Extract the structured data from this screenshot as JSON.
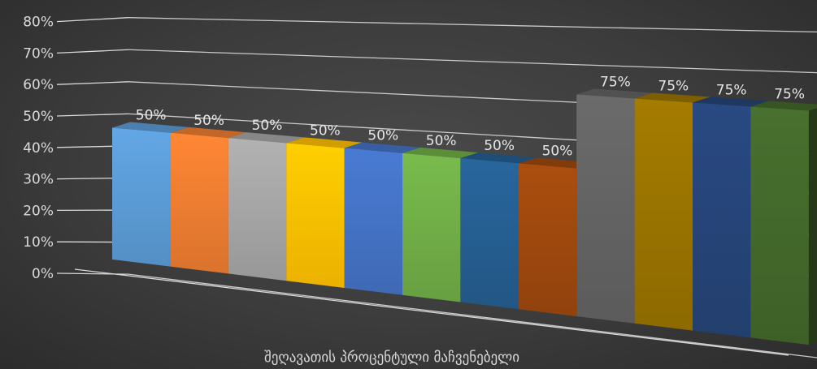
{
  "chart_data": {
    "type": "bar",
    "title": "",
    "xlabel": "შეღავათის პროცენტული მაჩვენებელი",
    "ylabel": "",
    "ylim": [
      0,
      0.8
    ],
    "y_ticks": [
      "0%",
      "10%",
      "20%",
      "30%",
      "40%",
      "50%",
      "60%",
      "70%",
      "80%"
    ],
    "grid": true,
    "legend": "none",
    "values": [
      0.5,
      0.5,
      0.5,
      0.5,
      0.5,
      0.5,
      0.5,
      0.5,
      0.75,
      0.75,
      0.75,
      0.75
    ],
    "data_labels": [
      "50%",
      "50%",
      "50%",
      "50%",
      "50%",
      "50%",
      "50%",
      "50%",
      "75%",
      "75%",
      "75%",
      "75%"
    ],
    "colors": [
      "#5b9bd5",
      "#ed7d31",
      "#a5a5a5",
      "#ffc000",
      "#4472c4",
      "#70ad47",
      "#255e91",
      "#9e480e",
      "#636363",
      "#997300",
      "#264478",
      "#43682b"
    ]
  }
}
